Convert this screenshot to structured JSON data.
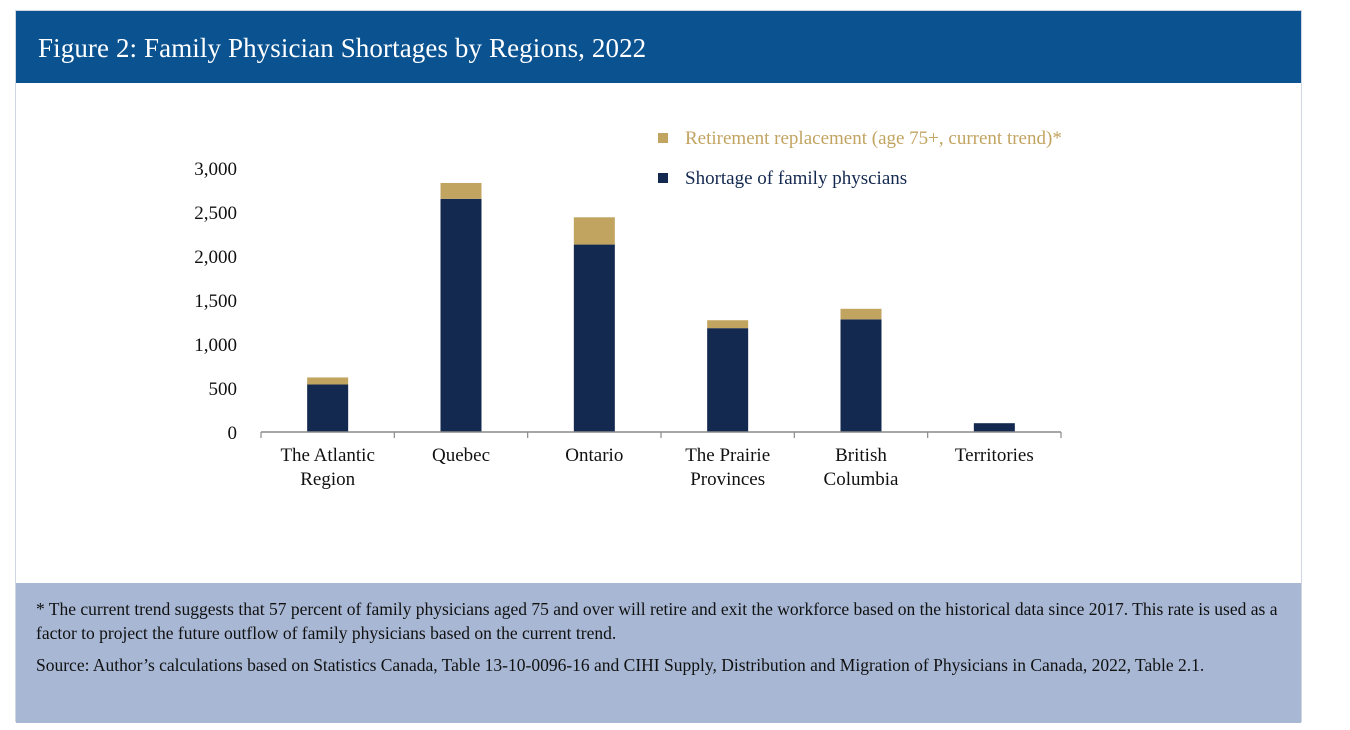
{
  "title": "Figure 2: Family Physician Shortages by Regions, 2022",
  "chart_data": {
    "type": "bar",
    "stacked": true,
    "categories": [
      [
        "The Atlantic",
        "Region"
      ],
      [
        "Quebec"
      ],
      [
        "Ontario"
      ],
      [
        "The Prairie",
        "Provinces"
      ],
      [
        "British",
        "Columbia"
      ],
      [
        "Territories"
      ]
    ],
    "series": [
      {
        "name": "Shortage of family physcians",
        "color": "#14294f",
        "values": [
          540,
          2650,
          2130,
          1180,
          1280,
          100
        ]
      },
      {
        "name": "Retirement replacement (age 75+, current trend)*",
        "color": "#c2a461",
        "values": [
          80,
          180,
          310,
          90,
          120,
          0
        ]
      }
    ],
    "ylim": [
      0,
      3000
    ],
    "yticks": [
      0,
      500,
      1000,
      1500,
      2000,
      2500,
      3000
    ],
    "ytick_labels": [
      "0",
      "500",
      "1,000",
      "1,500",
      "2,000",
      "2,500",
      "3,000"
    ],
    "xlabel": "",
    "ylabel": "",
    "grid": false,
    "legend_position": "top-right",
    "legend_order": [
      1,
      0
    ]
  },
  "notes": {
    "footnote": "* The current trend suggests that 57 percent of family physicians aged 75 and over will retire and exit the workforce based on the historical data since 2017. This rate is used as a factor to project the future outflow of family physicians based on the current trend.",
    "source": "Source: Author’s calculations based on Statistics Canada, Table 13-10-0096-16 and CIHI Supply, Distribution and Migration of Physicians in Canada, 2022, Table 2.1."
  }
}
